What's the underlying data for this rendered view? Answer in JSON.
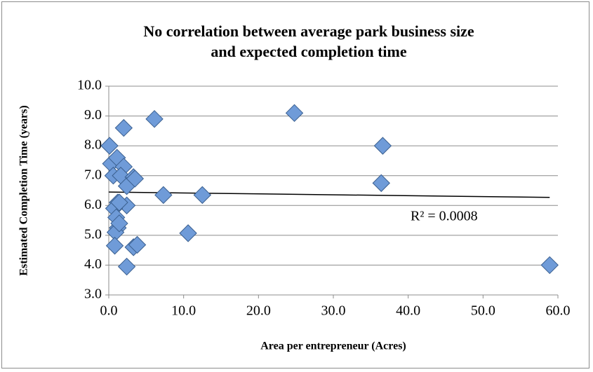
{
  "chart_data": {
    "type": "scatter",
    "title": "No correlation between average park business size and expected completion time",
    "x_label": "Area per entrepreneur (Acres)",
    "y_label": "Estimated Completion Time (years)",
    "annotation": "R² = 0.0008",
    "x": [
      0.1,
      0.3,
      0.6,
      1.1,
      2.0,
      6.1,
      24.8,
      36.6,
      36.4,
      58.9,
      2.0,
      1.6,
      3.3,
      2.4,
      7.3,
      12.5,
      1.2,
      2.4,
      0.7,
      1.0,
      1.2,
      0.9,
      10.6,
      0.8,
      3.3,
      3.8,
      2.4,
      1.4,
      3.5,
      1.4
    ],
    "y": [
      8.0,
      7.4,
      7.0,
      7.6,
      8.6,
      8.9,
      9.1,
      8.0,
      6.75,
      4.0,
      7.3,
      7.0,
      6.95,
      6.65,
      6.35,
      6.35,
      6.1,
      6.0,
      5.9,
      5.6,
      5.25,
      5.1,
      5.07,
      4.65,
      4.6,
      4.68,
      3.95,
      5.4,
      6.9,
      6.1
    ],
    "color": "#6f9bd8",
    "trendline": {
      "x": [
        0,
        58.9
      ],
      "y": [
        6.45,
        6.27
      ],
      "color": "#000000"
    },
    "xlim": [
      0,
      60
    ],
    "ylim": [
      3,
      10
    ],
    "xticks": [
      {
        "value": 0,
        "label": "0.0"
      },
      {
        "value": 10,
        "label": "10.0"
      },
      {
        "value": 20,
        "label": "20.0"
      },
      {
        "value": 30,
        "label": "30.0"
      },
      {
        "value": 40,
        "label": "40.0"
      },
      {
        "value": 50,
        "label": "50.0"
      },
      {
        "value": 60,
        "label": "60.0"
      }
    ],
    "yticks": [
      {
        "value": 3,
        "label": "3.0"
      },
      {
        "value": 4,
        "label": "4.0"
      },
      {
        "value": 5,
        "label": "5.0"
      },
      {
        "value": 6,
        "label": "6.0"
      },
      {
        "value": 7,
        "label": "7.0"
      },
      {
        "value": 8,
        "label": "8.0"
      },
      {
        "value": 9,
        "label": "9.0"
      },
      {
        "value": 10,
        "label": "10.0"
      }
    ],
    "grid": true
  }
}
